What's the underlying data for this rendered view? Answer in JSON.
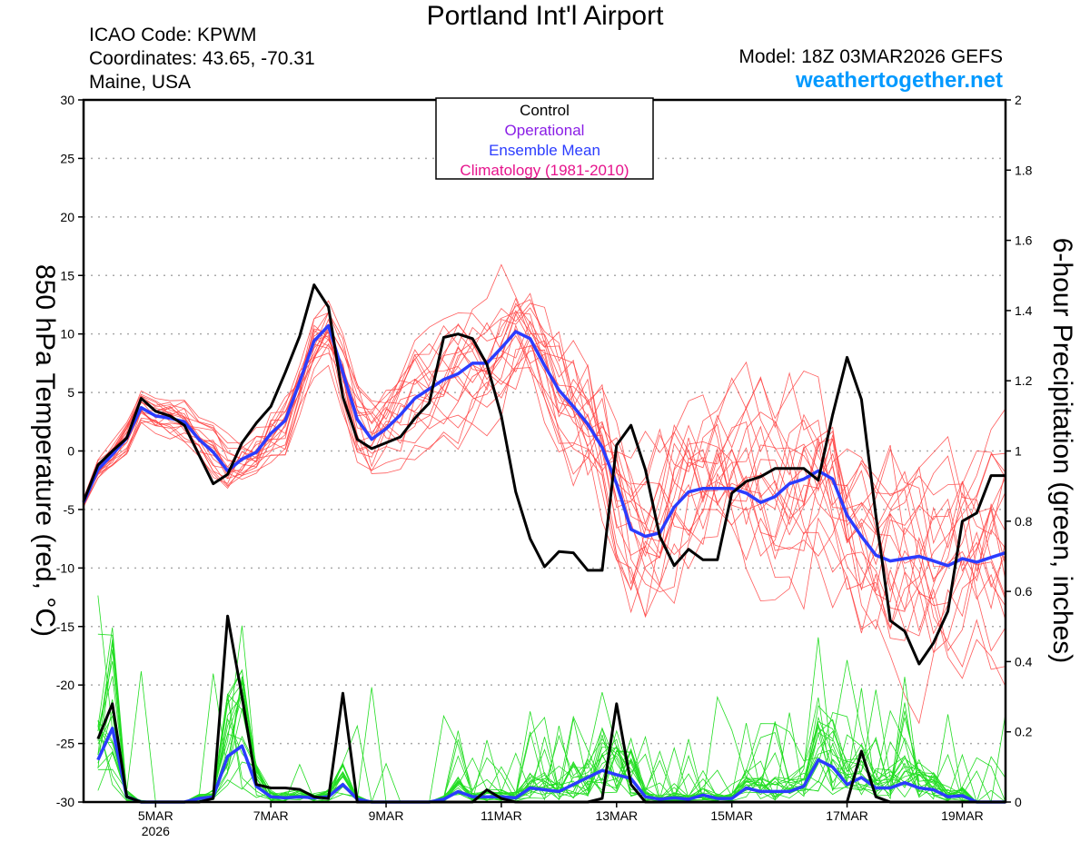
{
  "header": {
    "title": "Portland Int'l Airport",
    "icao": "ICAO Code: KPWM",
    "coordinates": "Coordinates: 43.65, -70.31",
    "region": "Maine, USA",
    "model": "Model: 18Z 03MAR2026 GEFS",
    "site": "weathertogether.net"
  },
  "legend": {
    "items": [
      {
        "label": "Control",
        "color": "#000000"
      },
      {
        "label": "Operational",
        "color": "#8a1ee6"
      },
      {
        "label": "Ensemble Mean",
        "color": "#2b3cff"
      },
      {
        "label": "Climatology (1981-2010)",
        "color": "#e6138c"
      }
    ]
  },
  "chart_data": {
    "type": "line",
    "title": "Portland Int'l Airport",
    "ylabel": "850 hPa Temperature (red, °C)",
    "y2label": "6-hour Precipitation (green, inches)",
    "ylim": [
      -30,
      30
    ],
    "y2lim": [
      0,
      2
    ],
    "yticks": [
      "30",
      "25",
      "20",
      "15",
      "10",
      "5",
      "0",
      "-5",
      "-10",
      "-15",
      "-20",
      "-25",
      "-30"
    ],
    "y2ticks": [
      "2",
      "1.8",
      "1.6",
      "1.4",
      "1.2",
      "1",
      "0.8",
      "0.6",
      "0.4",
      "0.2",
      "0"
    ],
    "xticks": [
      {
        "day": 1.25,
        "label": "5MAR",
        "sub": "2026"
      },
      {
        "day": 3.25,
        "label": "7MAR"
      },
      {
        "day": 5.25,
        "label": "9MAR"
      },
      {
        "day": 7.25,
        "label": "11MAR"
      },
      {
        "day": 9.25,
        "label": "13MAR"
      },
      {
        "day": 11.25,
        "label": "15MAR"
      },
      {
        "day": 13.25,
        "label": "17MAR"
      },
      {
        "day": 15.25,
        "label": "19MAR"
      }
    ],
    "x_step_hours": 6,
    "x_start": "18Z 03MAR2026",
    "grid": true,
    "legend_placement": "top-center",
    "ensemble_members": 20,
    "temp_spread_by_day": [
      0.5,
      1,
      1.5,
      2,
      2.5,
      3,
      3,
      3.5,
      4,
      5.5,
      6,
      6,
      6.5,
      6.5,
      7,
      7,
      7
    ],
    "colors": {
      "control": "#000000",
      "mean": "#2b3cff",
      "members_temp": "#ff4040",
      "members_precip": "#22dd22"
    },
    "series": [
      {
        "name": "Control 850 hPa Temperature",
        "values": [
          -4.3,
          -1.2,
          0,
          1.1,
          4.5,
          3.4,
          3.0,
          2.2,
          -0.3,
          -2.8,
          -2.0,
          0.7,
          2.4,
          3.8,
          6.7,
          9.8,
          14.2,
          12.3,
          4.6,
          1.0,
          0.2,
          0.7,
          1.2,
          2.8,
          4.1,
          9.7,
          10.0,
          9.6,
          7.4,
          3.0,
          -3.5,
          -7.5,
          -9.9,
          -8.6,
          -8.7,
          -10.2,
          -10.2,
          0.5,
          2.2,
          -1.6,
          -7.3,
          -9.8,
          -8.4,
          -9.3,
          -9.3,
          -3.6,
          -2.6,
          -2.2,
          -1.5,
          -1.5,
          -1.5,
          -2.5,
          3.1,
          8.0,
          4.4,
          -5.5,
          -14.5,
          -15.4,
          -18.2,
          -16.4,
          -13.7,
          -6.0,
          -5.3,
          -2.1,
          -2.1
        ]
      },
      {
        "name": "Ensemble Mean 850 hPa Temperature",
        "values": [
          -4.4,
          -1.6,
          -0.3,
          1.1,
          3.7,
          3.0,
          2.8,
          2.5,
          1.0,
          -0.1,
          -1.7,
          -0.7,
          -0.1,
          1.5,
          2.6,
          5.9,
          9.4,
          10.7,
          6.7,
          2.7,
          1.0,
          1.9,
          3.1,
          4.5,
          5.3,
          6.1,
          6.6,
          7.5,
          7.5,
          8.8,
          10.2,
          9.6,
          7.3,
          5.2,
          3.8,
          2.3,
          0.3,
          -2.8,
          -6.7,
          -7.3,
          -7.0,
          -4.8,
          -3.5,
          -3.2,
          -3.2,
          -3.2,
          -3.6,
          -4.4,
          -3.9,
          -2.8,
          -2.4,
          -1.7,
          -2.4,
          -5.5,
          -7.3,
          -8.9,
          -9.4,
          -9.2,
          -9.0,
          -9.4,
          -9.8,
          -9.2,
          -9.5,
          -9.1,
          -8.7
        ]
      },
      {
        "name": "Control 6-hour Precipitation",
        "values": [
          0.18,
          0.28,
          0.015,
          0,
          0,
          0,
          0,
          0,
          0.01,
          0.53,
          0.3,
          0.05,
          0.04,
          0.04,
          0.036,
          0.015,
          0.01,
          0.31,
          0,
          0,
          0,
          0,
          0,
          0,
          0,
          0,
          0,
          0.035,
          0.01,
          0,
          0,
          0,
          0,
          0,
          0,
          0.01,
          0.28,
          0.05,
          0,
          0,
          0,
          0,
          0,
          0,
          0,
          0,
          0,
          0,
          0,
          0,
          0,
          0,
          0,
          0.145,
          0.015,
          0,
          0,
          0,
          0,
          0,
          0,
          0,
          0,
          0
        ]
      },
      {
        "name": "Ensemble Mean 6-hour Precipitation",
        "values": [
          0.12,
          0.21,
          0.015,
          0,
          0,
          0,
          0,
          0.01,
          0.015,
          0.13,
          0.16,
          0.045,
          0.015,
          0.012,
          0.015,
          0.012,
          0.015,
          0.05,
          0.008,
          0,
          0,
          0,
          0,
          0,
          0.008,
          0.03,
          0.015,
          0.015,
          0.015,
          0.012,
          0.04,
          0.035,
          0.03,
          0.05,
          0.07,
          0.09,
          0.078,
          0.067,
          0.015,
          0.008,
          0.012,
          0.008,
          0.02,
          0.01,
          0.01,
          0.04,
          0.03,
          0.03,
          0.03,
          0.045,
          0.12,
          0.1,
          0.05,
          0.07,
          0.04,
          0.04,
          0.055,
          0.04,
          0.035,
          0.015,
          0.018,
          0,
          0,
          0
        ]
      }
    ]
  }
}
